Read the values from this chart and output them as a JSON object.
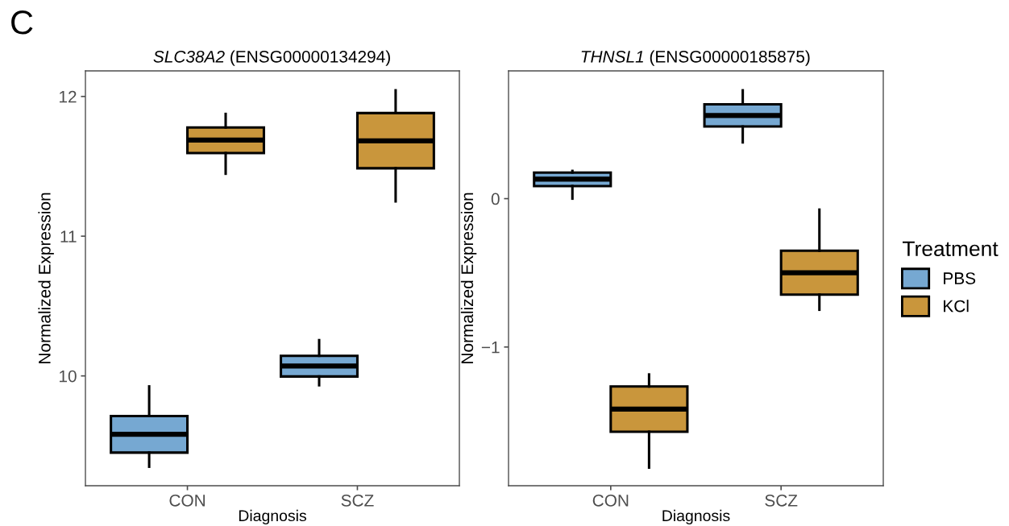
{
  "chart_data": [
    {
      "type": "box",
      "title": "SLC38A2 (ENSG00000134294)",
      "xlabel": "Diagnosis",
      "ylabel": "Normalized Expression",
      "categories": [
        "CON",
        "SCZ"
      ],
      "ylim": [
        9.214,
        12.183
      ],
      "yticks": [
        10,
        11,
        12
      ],
      "grid": false,
      "annotations": [
        "C"
      ],
      "series": [
        {
          "color": "#76a8d2",
          "boxes": [
            {
              "low": 9.35,
              "q1": 9.451,
              "median": 9.582,
              "q3": 9.713,
              "high": 9.925
            },
            {
              "low": 9.933,
              "q1": 9.996,
              "median": 10.071,
              "q3": 10.144,
              "high": 10.256
            }
          ]
        },
        {
          "color": "#c9963c",
          "boxes": [
            {
              "low": 11.447,
              "q1": 11.595,
              "median": 11.688,
              "q3": 11.778,
              "high": 11.875
            },
            {
              "low": 11.249,
              "q1": 11.486,
              "median": 11.682,
              "q3": 11.881,
              "high": 12.044
            }
          ]
        }
      ]
    },
    {
      "type": "box",
      "title": "THNSL1 (ENSG00000185875)",
      "xlabel": "Diagnosis",
      "ylabel": "Normalized Expression",
      "categories": [
        "CON",
        "SCZ"
      ],
      "ylim": [
        -1.935,
        0.861
      ],
      "yticks": [
        {
          "value": -1,
          "label": "−1"
        },
        0
      ],
      "grid": false,
      "legend": "right",
      "legend_title": "Treatment",
      "series": [
        {
          "name": "PBS",
          "color": "#76a8d2",
          "boxes": [
            {
              "low": 0.0,
              "q1": 0.085,
              "median": 0.131,
              "q3": 0.176,
              "high": 0.187
            },
            {
              "low": 0.379,
              "q1": 0.486,
              "median": 0.56,
              "q3": 0.636,
              "high": 0.73
            }
          ]
        },
        {
          "name": "KCl",
          "color": "#c9963c",
          "boxes": [
            {
              "low": -1.813,
              "q1": -1.571,
              "median": -1.418,
              "q3": -1.266,
              "high": -1.185
            },
            {
              "low": -0.749,
              "q1": -0.647,
              "median": -0.499,
              "q3": -0.351,
              "high": -0.074
            }
          ]
        }
      ]
    }
  ]
}
